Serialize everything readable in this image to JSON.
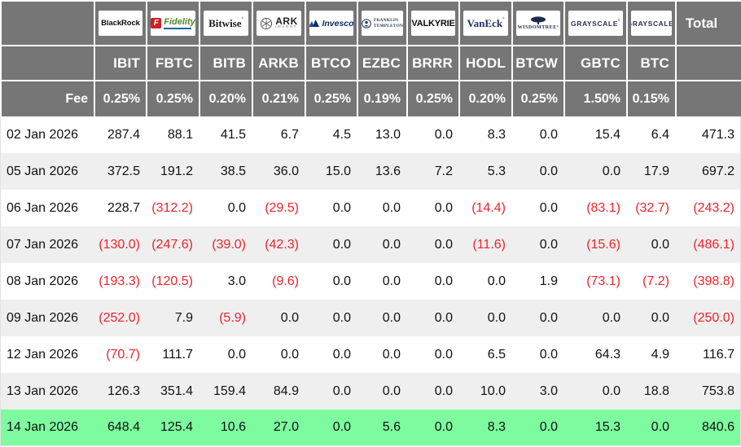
{
  "theme": {
    "header_bg": "#767676",
    "header_text": "#ffffff",
    "alt_row_bg": "#efefef",
    "highlight_row_bg": "#7dfb9e",
    "negative_color": "#f0222b",
    "text_color": "#111111"
  },
  "chart_data": {
    "type": "table",
    "fee_row_label": "Fee",
    "total_label": "Total",
    "funds": [
      {
        "issuer": "BlackRock",
        "ticker": "IBIT",
        "fee": "0.25%",
        "logo": {
          "style": "blackrock",
          "lines": [
            "BlackRock"
          ]
        }
      },
      {
        "issuer": "Fidelity",
        "ticker": "FBTC",
        "fee": "0.25%",
        "logo": {
          "style": "fidelity",
          "lines": [
            "F",
            "Fidelity"
          ]
        }
      },
      {
        "issuer": "Bitwise",
        "ticker": "BITB",
        "fee": "0.20%",
        "logo": {
          "style": "bitwise",
          "lines": [
            "Bitwise"
          ]
        }
      },
      {
        "issuer": "ARK Invest",
        "ticker": "ARKB",
        "fee": "0.21%",
        "logo": {
          "style": "ark",
          "lines": [
            "ARK",
            "INVEST"
          ]
        }
      },
      {
        "issuer": "Invesco",
        "ticker": "BTCO",
        "fee": "0.25%",
        "logo": {
          "style": "invesco",
          "lines": [
            "Invesco"
          ]
        }
      },
      {
        "issuer": "Franklin Templeton",
        "ticker": "EZBC",
        "fee": "0.19%",
        "logo": {
          "style": "franklin",
          "lines": [
            "FRANKLIN",
            "TEMPLETON"
          ]
        }
      },
      {
        "issuer": "Valkyrie",
        "ticker": "BRRR",
        "fee": "0.25%",
        "logo": {
          "style": "valkyrie",
          "lines": [
            "VALKYRIE"
          ]
        }
      },
      {
        "issuer": "VanEck",
        "ticker": "HODL",
        "fee": "0.20%",
        "logo": {
          "style": "vaneck",
          "lines": [
            "VanEck"
          ]
        }
      },
      {
        "issuer": "WisdomTree",
        "ticker": "BTCW",
        "fee": "0.25%",
        "logo": {
          "style": "wisdomtree",
          "lines": [
            "WISDOMTREE"
          ]
        }
      },
      {
        "issuer": "Grayscale",
        "ticker": "GBTC",
        "fee": "1.50%",
        "logo": {
          "style": "grayscale",
          "lines": [
            "GRAYSCALE"
          ]
        }
      },
      {
        "issuer": "Grayscale",
        "ticker": "BTC",
        "fee": "0.15%",
        "logo": {
          "style": "grayscale",
          "lines": [
            "GRAYSCALE"
          ]
        }
      }
    ],
    "rows": [
      {
        "date": "02 Jan 2026",
        "values": [
          "287.4",
          "88.1",
          "41.5",
          "6.7",
          "4.5",
          "13.0",
          "0.0",
          "8.3",
          "0.0",
          "15.4",
          "6.4"
        ],
        "total": "471.3",
        "highlighted": false
      },
      {
        "date": "05 Jan 2026",
        "values": [
          "372.5",
          "191.2",
          "38.5",
          "36.0",
          "15.0",
          "13.6",
          "7.2",
          "5.3",
          "0.0",
          "0.0",
          "17.9"
        ],
        "total": "697.2",
        "highlighted": false
      },
      {
        "date": "06 Jan 2026",
        "values": [
          "228.7",
          "(312.2)",
          "0.0",
          "(29.5)",
          "0.0",
          "0.0",
          "0.0",
          "(14.4)",
          "0.0",
          "(83.1)",
          "(32.7)"
        ],
        "total": "(243.2)",
        "highlighted": false
      },
      {
        "date": "07 Jan 2026",
        "values": [
          "(130.0)",
          "(247.6)",
          "(39.0)",
          "(42.3)",
          "0.0",
          "0.0",
          "0.0",
          "(11.6)",
          "0.0",
          "(15.6)",
          "0.0"
        ],
        "total": "(486.1)",
        "highlighted": false
      },
      {
        "date": "08 Jan 2026",
        "values": [
          "(193.3)",
          "(120.5)",
          "3.0",
          "(9.6)",
          "0.0",
          "0.0",
          "0.0",
          "0.0",
          "1.9",
          "(73.1)",
          "(7.2)"
        ],
        "total": "(398.8)",
        "highlighted": false
      },
      {
        "date": "09 Jan 2026",
        "values": [
          "(252.0)",
          "7.9",
          "(5.9)",
          "0.0",
          "0.0",
          "0.0",
          "0.0",
          "0.0",
          "0.0",
          "0.0",
          "0.0"
        ],
        "total": "(250.0)",
        "highlighted": false
      },
      {
        "date": "12 Jan 2026",
        "values": [
          "(70.7)",
          "111.7",
          "0.0",
          "0.0",
          "0.0",
          "0.0",
          "0.0",
          "6.5",
          "0.0",
          "64.3",
          "4.9"
        ],
        "total": "116.7",
        "highlighted": false
      },
      {
        "date": "13 Jan 2026",
        "values": [
          "126.3",
          "351.4",
          "159.4",
          "84.9",
          "0.0",
          "0.0",
          "0.0",
          "10.0",
          "3.0",
          "0.0",
          "18.8"
        ],
        "total": "753.8",
        "highlighted": false
      },
      {
        "date": "14 Jan 2026",
        "values": [
          "648.4",
          "125.4",
          "10.6",
          "27.0",
          "0.0",
          "5.6",
          "0.0",
          "8.3",
          "0.0",
          "15.3",
          "0.0"
        ],
        "total": "840.6",
        "highlighted": true
      }
    ]
  }
}
